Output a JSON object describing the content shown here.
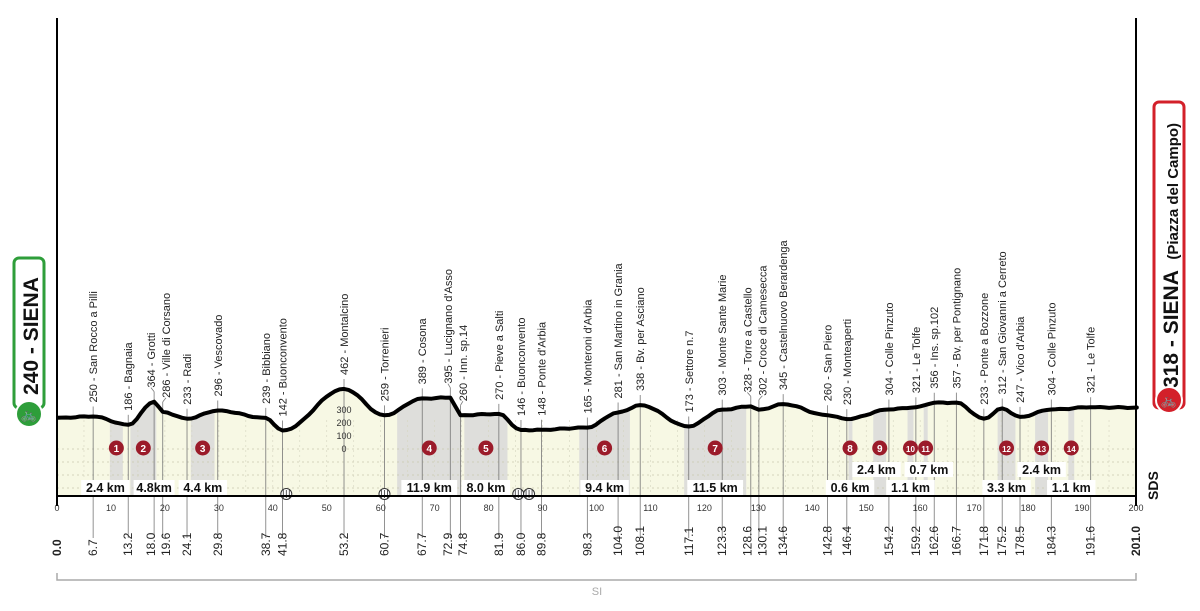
{
  "chart_data": {
    "type": "area",
    "start": {
      "label": "240 - SIENA",
      "km": 0.0,
      "elevation": 240,
      "color": "#2e9e3a"
    },
    "finish": {
      "label": "318 - SIENA",
      "sublabel": "(Piazza del Campo)",
      "km": 201.0,
      "elevation": 318,
      "color": "#d3202a"
    },
    "xlim": [
      0,
      200
    ],
    "x_ticks": [
      0,
      10,
      20,
      30,
      40,
      50,
      60,
      70,
      80,
      90,
      100,
      110,
      120,
      130,
      140,
      150,
      160,
      170,
      180,
      190,
      200
    ],
    "elevation_scale": [
      "300",
      "200",
      "100",
      "0"
    ],
    "points": [
      {
        "km": "0.0",
        "x": 0,
        "elev": 240,
        "name": ""
      },
      {
        "km": "6.7",
        "x": 6.7,
        "elev": 250,
        "name": "250 - San Rocco a Pilli"
      },
      {
        "km": "13.2",
        "x": 13.2,
        "elev": 186,
        "name": "186 - Bagnaia"
      },
      {
        "km": "18.0",
        "x": 18.0,
        "elev": 364,
        "name": "364 - Grotti"
      },
      {
        "km": "19.6",
        "x": 19.6,
        "elev": 286,
        "name": "286 - Ville di Corsano"
      },
      {
        "km": "24.1",
        "x": 24.1,
        "elev": 233,
        "name": "233 - Radi"
      },
      {
        "km": "29.8",
        "x": 29.8,
        "elev": 296,
        "name": "296 - Vescovado"
      },
      {
        "km": "38.7",
        "x": 38.7,
        "elev": 239,
        "name": "239 - Bibbiano"
      },
      {
        "km": "41.8",
        "x": 41.8,
        "elev": 142,
        "name": "142 - Buonconvento"
      },
      {
        "km": "53.2",
        "x": 53.2,
        "elev": 462,
        "name": "462 - Montalcino"
      },
      {
        "km": "60.7",
        "x": 60.7,
        "elev": 259,
        "name": "259 - Torrenieri"
      },
      {
        "km": "67.7",
        "x": 67.7,
        "elev": 389,
        "name": "389 - Cosona"
      },
      {
        "km": "72.9",
        "x": 72.9,
        "elev": 395,
        "name": "395 - Lucignano d'Asso"
      },
      {
        "km": "74.8",
        "x": 74.8,
        "elev": 260,
        "name": "260 - Inn. sp.14"
      },
      {
        "km": "81.9",
        "x": 81.9,
        "elev": 270,
        "name": "270 - Pieve a Salti"
      },
      {
        "km": "86.0",
        "x": 86.0,
        "elev": 146,
        "name": "146 - Buonconvento"
      },
      {
        "km": "89.8",
        "x": 89.8,
        "elev": 148,
        "name": "148 - Ponte d'Arbia"
      },
      {
        "km": "98.3",
        "x": 98.3,
        "elev": 165,
        "name": "165 - Monteroni d'Arbia"
      },
      {
        "km": "104.0",
        "x": 104.0,
        "elev": 281,
        "name": "281 - San Martino in Grania"
      },
      {
        "km": "108.1",
        "x": 108.1,
        "elev": 338,
        "name": "338 - Bv. per Asciano"
      },
      {
        "km": "117.1",
        "x": 117.1,
        "elev": 173,
        "name": "173 - Settore n.7"
      },
      {
        "km": "123.3",
        "x": 123.3,
        "elev": 303,
        "name": "303 - Monte Sante Marie"
      },
      {
        "km": "128.6",
        "x": 128.6,
        "elev": 328,
        "name": "328 - Torre a Castello"
      },
      {
        "km": "130.1",
        "x": 130.1,
        "elev": 302,
        "name": "302 - Croce di Camesecca"
      },
      {
        "km": "134.6",
        "x": 134.6,
        "elev": 345,
        "name": "345 - Castelnuovo Berardenga"
      },
      {
        "km": "142.8",
        "x": 142.8,
        "elev": 260,
        "name": "260 - San Piero"
      },
      {
        "km": "146.4",
        "x": 146.4,
        "elev": 230,
        "name": "230 - Monteaperti"
      },
      {
        "km": "154.2",
        "x": 154.2,
        "elev": 304,
        "name": "304 - Colle Pinzuto"
      },
      {
        "km": "159.2",
        "x": 159.2,
        "elev": 321,
        "name": "321 - Le Tolfe"
      },
      {
        "km": "162.6",
        "x": 162.6,
        "elev": 356,
        "name": "356 - Ins. sp.102"
      },
      {
        "km": "166.7",
        "x": 166.7,
        "elev": 357,
        "name": "357 - Bv. per Pontignano"
      },
      {
        "km": "171.8",
        "x": 171.8,
        "elev": 233,
        "name": "233 - Ponte a Bozzone"
      },
      {
        "km": "175.2",
        "x": 175.2,
        "elev": 312,
        "name": "312 - San Giovanni a Cerreto"
      },
      {
        "km": "178.5",
        "x": 178.5,
        "elev": 247,
        "name": "247 - Vico d'Arbia"
      },
      {
        "km": "184.3",
        "x": 184.3,
        "elev": 304,
        "name": "304 - Colle Pinzuto"
      },
      {
        "km": "191.6",
        "x": 191.6,
        "elev": 321,
        "name": "321 - Le Tolfe"
      },
      {
        "km": "201.0",
        "x": 201.0,
        "elev": 318,
        "name": ""
      }
    ],
    "sectors": [
      {
        "num": "1",
        "km": 11.0,
        "length": "2.4 km",
        "len": 2.4,
        "row": 1
      },
      {
        "num": "2",
        "km": 16.0,
        "length": "4.8km",
        "len": 4.8,
        "row": 1
      },
      {
        "num": "3",
        "km": 27.0,
        "length": "4.4 km",
        "len": 4.4,
        "row": 1
      },
      {
        "num": "4",
        "km": 69.0,
        "length": "11.9 km",
        "len": 11.9,
        "row": 1
      },
      {
        "num": "5",
        "km": 79.5,
        "length": "8.0 km",
        "len": 8.0,
        "row": 1
      },
      {
        "num": "6",
        "km": 101.5,
        "length": "9.4 km",
        "len": 9.4,
        "row": 1
      },
      {
        "num": "7",
        "km": 122.0,
        "length": "11.5 km",
        "len": 11.5,
        "row": 1
      },
      {
        "num": "8",
        "km": 147.0,
        "length": "0.6 km",
        "len": 0.6,
        "row": 1
      },
      {
        "num": "9",
        "km": 152.5,
        "length": "2.4 km",
        "len": 2.4,
        "row": 2
      },
      {
        "num": "10",
        "km": 158.2,
        "length": "1.1 km",
        "len": 1.1,
        "row": 1
      },
      {
        "num": "11",
        "km": 161.0,
        "length": "0.7 km",
        "len": 0.7,
        "row": 2
      },
      {
        "num": "12",
        "km": 176.0,
        "length": "3.3 km",
        "len": 3.3,
        "row": 1
      },
      {
        "num": "13",
        "km": 182.5,
        "length": "2.4 km",
        "len": 2.4,
        "row": 2
      },
      {
        "num": "14",
        "km": 188.0,
        "length": "1.1 km",
        "len": 1.1,
        "row": 1
      }
    ],
    "level_crossings_km": [
      42.5,
      60.7,
      85.5,
      87.5
    ],
    "bracket_label": "SI",
    "logo": "SDS",
    "sector_color": "#9b1b2a",
    "plot_fill": "#f7f8e4",
    "sector_band": "#d9d9d9"
  }
}
